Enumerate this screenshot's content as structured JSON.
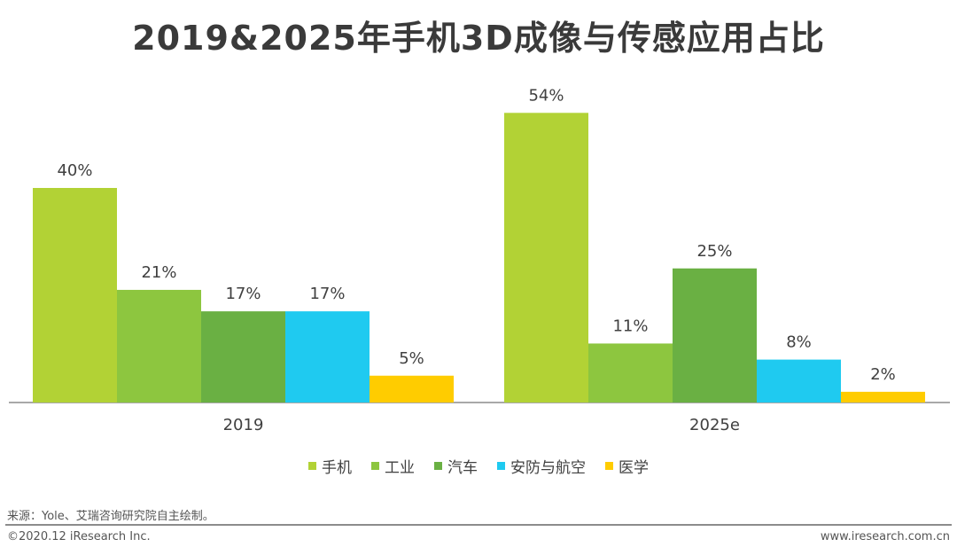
{
  "chart_data": {
    "type": "bar",
    "title": "2019&2025年手机3D成像与传感应用占比",
    "categories": [
      "2019",
      "2025e"
    ],
    "series": [
      {
        "name": "手机",
        "color": "#b2d235",
        "values": [
          40,
          54
        ],
        "labels": [
          "40%",
          "54%"
        ]
      },
      {
        "name": "工业",
        "color": "#8dc63f",
        "values": [
          21,
          11
        ],
        "labels": [
          "21%",
          "11%"
        ]
      },
      {
        "name": "汽车",
        "color": "#6ab043",
        "values": [
          17,
          25
        ],
        "labels": [
          "17%",
          "25%"
        ]
      },
      {
        "name": "安防与航空",
        "color": "#1fcaf0",
        "values": [
          17,
          8
        ],
        "labels": [
          "17%",
          "8%"
        ]
      },
      {
        "name": "医学",
        "color": "#ffcc00",
        "values": [
          5,
          2
        ],
        "labels": [
          "5%",
          "2%"
        ]
      }
    ],
    "ylim": [
      0,
      60
    ],
    "grid": false,
    "legend_position": "bottom"
  },
  "source": "来源：Yole、艾瑞咨询研究院自主绘制。",
  "footer": {
    "copyright": "©2020.12 iResearch Inc.",
    "website": "www.iresearch.com.cn"
  }
}
